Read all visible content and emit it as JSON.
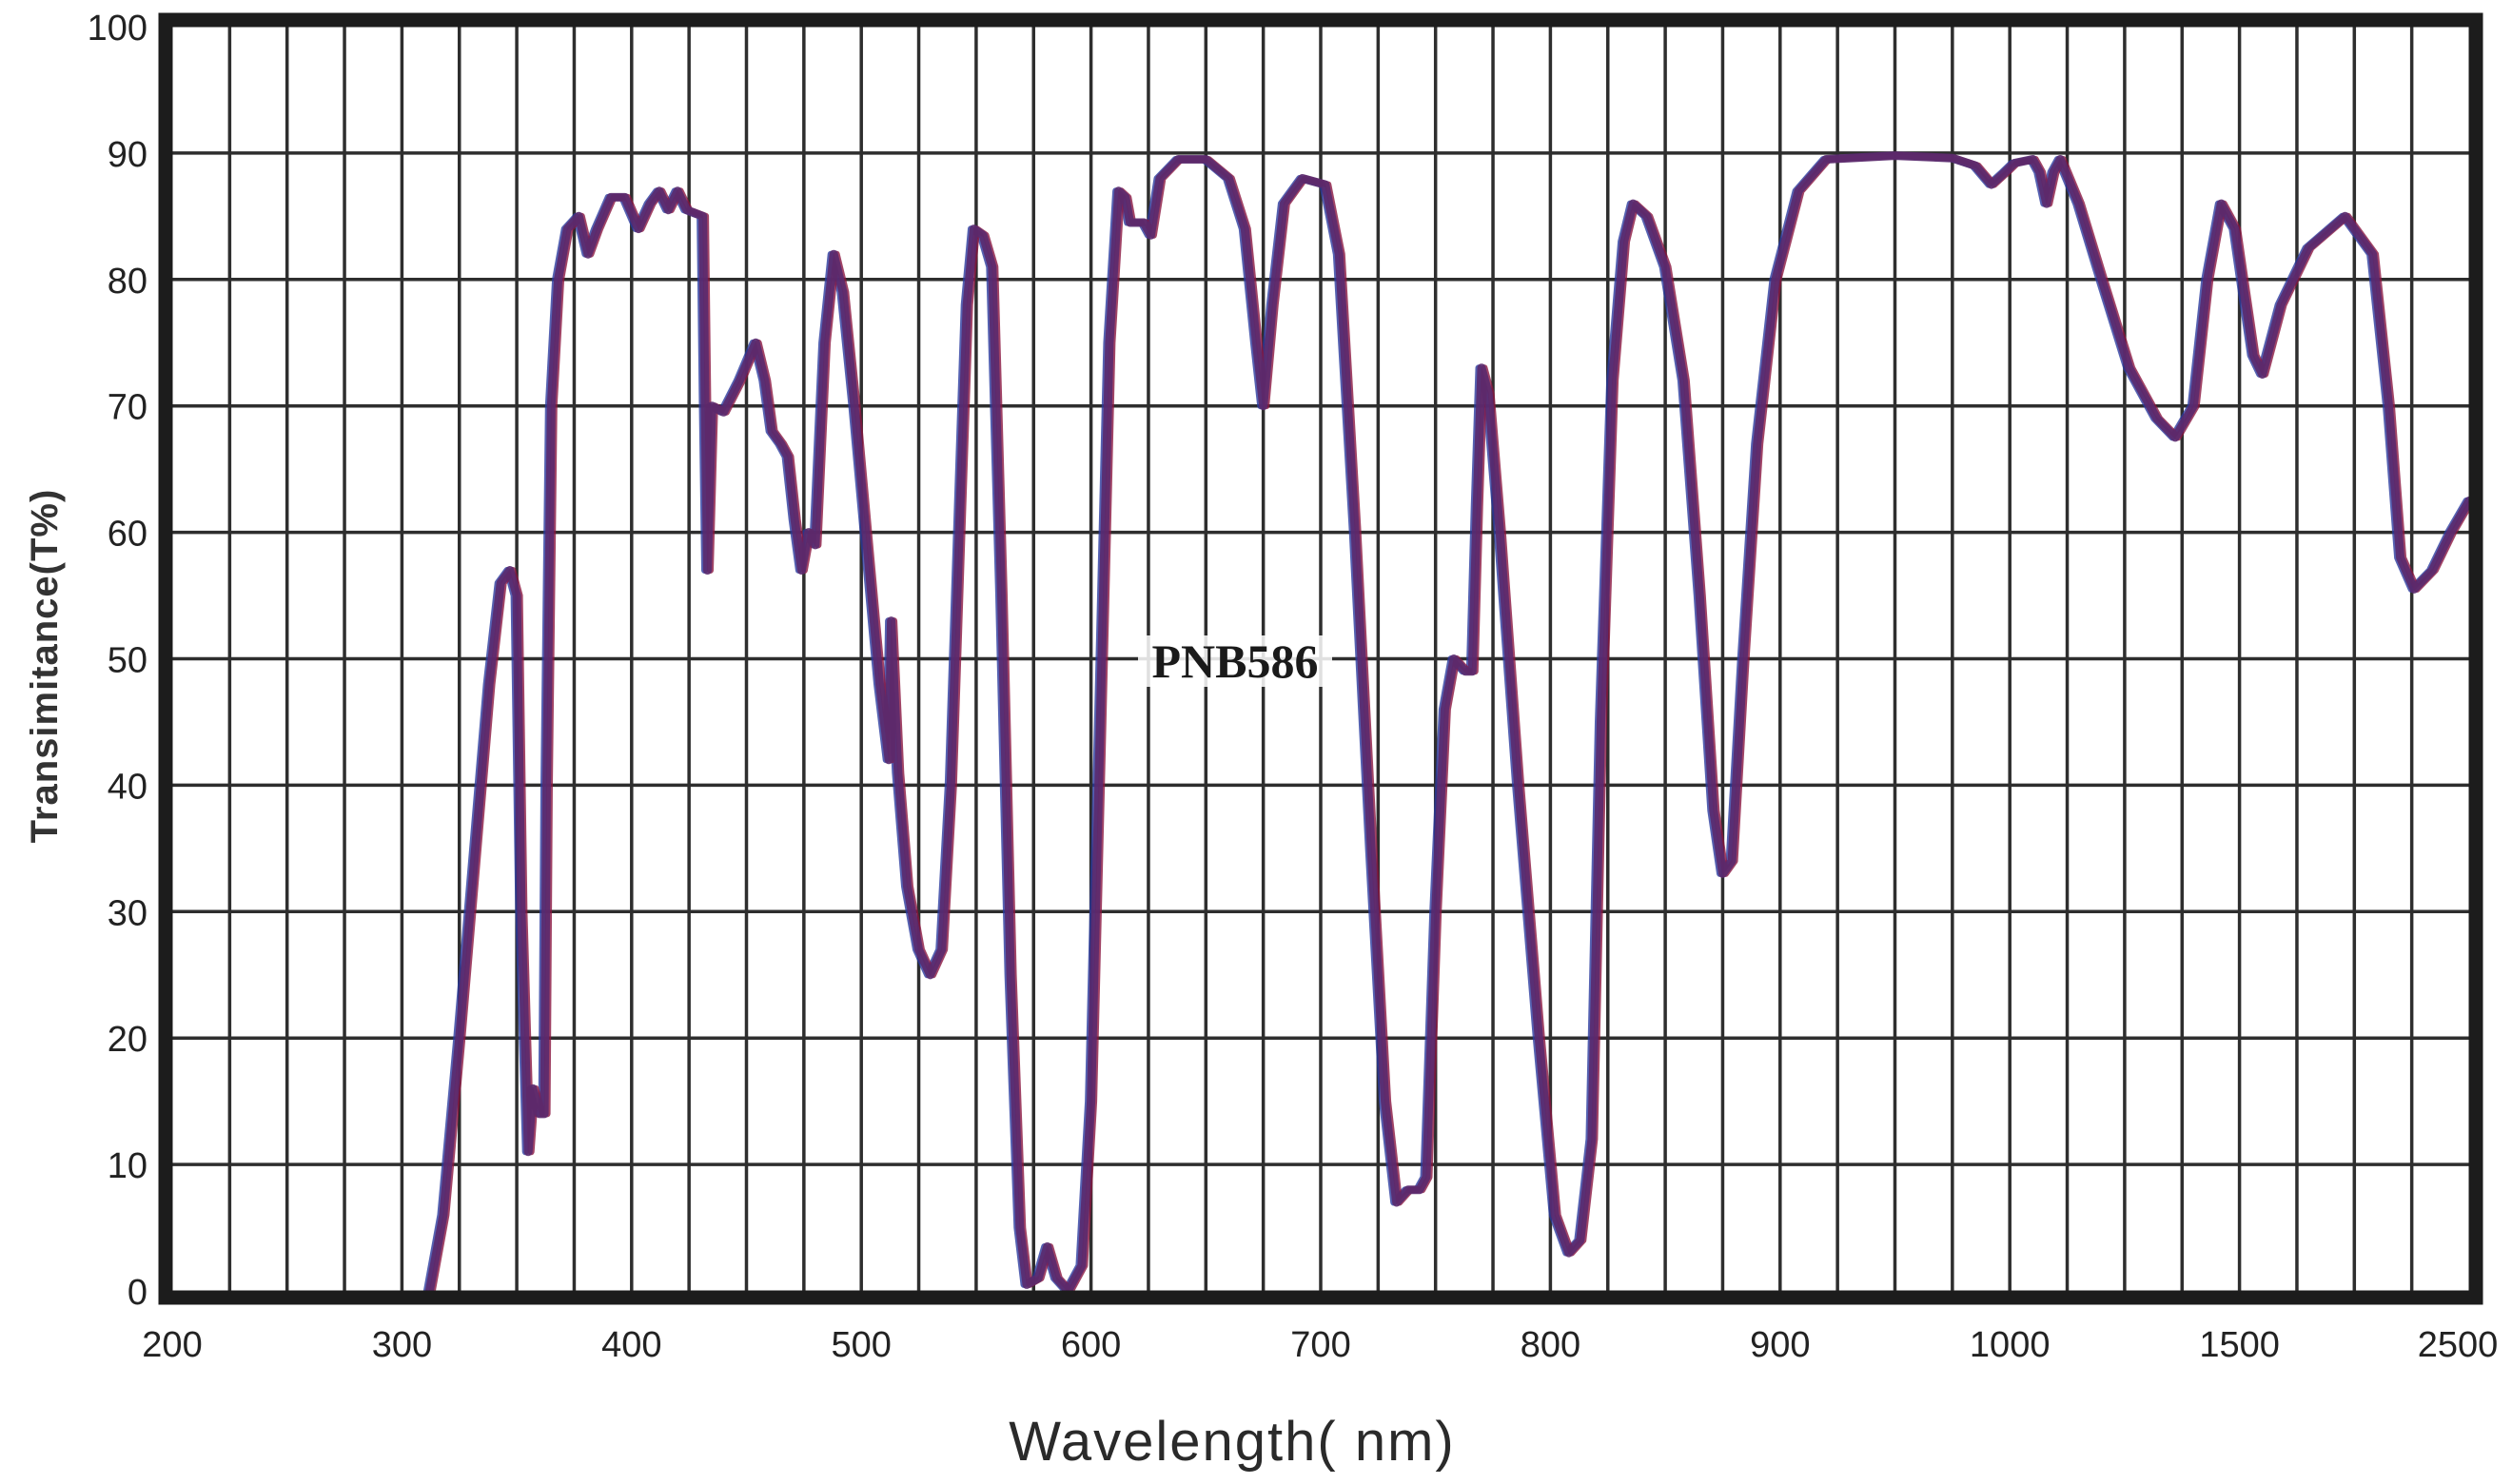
{
  "chart_data": {
    "type": "line",
    "title": "",
    "xlabel": "Wavelength( nm)",
    "ylabel": "Transimitance(T%)",
    "ylim": [
      0,
      100
    ],
    "xlim": [
      200,
      2500
    ],
    "x_scale_note": "non-uniform: linear 200-1000 nm, then compressed 1000-1500-2500",
    "grid": true,
    "legend": null,
    "annotations": [
      {
        "text": "PNB586",
        "x_nm": 665,
        "y": 50
      }
    ],
    "x_ticks": [
      {
        "label": "200",
        "value": 200
      },
      {
        "label": "300",
        "value": 300
      },
      {
        "label": "400",
        "value": 400
      },
      {
        "label": "500",
        "value": 500
      },
      {
        "label": "600",
        "value": 600
      },
      {
        "label": "700",
        "value": 700
      },
      {
        "label": "800",
        "value": 800
      },
      {
        "label": "900",
        "value": 900
      },
      {
        "label": "1000",
        "value": 1000
      },
      {
        "label": "1500",
        "value": 1500
      },
      {
        "label": "2500",
        "value": 2500
      }
    ],
    "y_ticks": [
      "0",
      "10",
      "20",
      "30",
      "40",
      "50",
      "60",
      "70",
      "80",
      "90",
      "100"
    ],
    "series": [
      {
        "name": "PNB586",
        "color": "#5a2a6e",
        "points": [
          [
            312,
            0
          ],
          [
            318,
            6
          ],
          [
            325,
            20
          ],
          [
            332,
            35
          ],
          [
            338,
            48
          ],
          [
            343,
            56
          ],
          [
            347,
            57
          ],
          [
            350,
            55
          ],
          [
            352,
            30
          ],
          [
            355,
            11
          ],
          [
            357,
            16
          ],
          [
            360,
            14
          ],
          [
            362,
            14
          ],
          [
            363,
            40
          ],
          [
            365,
            70
          ],
          [
            368,
            80
          ],
          [
            372,
            84
          ],
          [
            377,
            85
          ],
          [
            381,
            82
          ],
          [
            385,
            84
          ],
          [
            391,
            86.5
          ],
          [
            397,
            86.5
          ],
          [
            403,
            84
          ],
          [
            408,
            86
          ],
          [
            412,
            87
          ],
          [
            416,
            85.5
          ],
          [
            420,
            87
          ],
          [
            424,
            85.5
          ],
          [
            431,
            85
          ],
          [
            432,
            70
          ],
          [
            433,
            57
          ],
          [
            435,
            70
          ],
          [
            440,
            69.5
          ],
          [
            447,
            72
          ],
          [
            454,
            75
          ],
          [
            458,
            72
          ],
          [
            461,
            68
          ],
          [
            465,
            67
          ],
          [
            468,
            66
          ],
          [
            471,
            61
          ],
          [
            474,
            57
          ],
          [
            477,
            60
          ],
          [
            480,
            59
          ],
          [
            484,
            75
          ],
          [
            488,
            82
          ],
          [
            492,
            79
          ],
          [
            497,
            70
          ],
          [
            503,
            58
          ],
          [
            508,
            48
          ],
          [
            512,
            42
          ],
          [
            513,
            53
          ],
          [
            516,
            41
          ],
          [
            520,
            32
          ],
          [
            525,
            27
          ],
          [
            530,
            25
          ],
          [
            535,
            27
          ],
          [
            539,
            40
          ],
          [
            543,
            62
          ],
          [
            546,
            78
          ],
          [
            549,
            84
          ],
          [
            553,
            83.5
          ],
          [
            557,
            81
          ],
          [
            561,
            55
          ],
          [
            565,
            25
          ],
          [
            569,
            5
          ],
          [
            572,
            0.5
          ],
          [
            577,
            1
          ],
          [
            581,
            3.5
          ],
          [
            585,
            1
          ],
          [
            590,
            0
          ],
          [
            596,
            2
          ],
          [
            600,
            15
          ],
          [
            604,
            45
          ],
          [
            608,
            75
          ],
          [
            612,
            87
          ],
          [
            615,
            86.5
          ],
          [
            617,
            84.5
          ],
          [
            623,
            84.5
          ],
          [
            626,
            83.5
          ],
          [
            630,
            88
          ],
          [
            638,
            89.5
          ],
          [
            650,
            89.5
          ],
          [
            660,
            88
          ],
          [
            667,
            84
          ],
          [
            672,
            75
          ],
          [
            675,
            70
          ],
          [
            679,
            78
          ],
          [
            684,
            86
          ],
          [
            692,
            88
          ],
          [
            702,
            87.5
          ],
          [
            708,
            82
          ],
          [
            715,
            60
          ],
          [
            722,
            35
          ],
          [
            728,
            15
          ],
          [
            733,
            7
          ],
          [
            738,
            8
          ],
          [
            743,
            8
          ],
          [
            746,
            9
          ],
          [
            750,
            30
          ],
          [
            754,
            46
          ],
          [
            758,
            50
          ],
          [
            763,
            49
          ],
          [
            766,
            49
          ],
          [
            768,
            62
          ],
          [
            770,
            73
          ],
          [
            773,
            71
          ],
          [
            778,
            60
          ],
          [
            786,
            40
          ],
          [
            795,
            20
          ],
          [
            802,
            6
          ],
          [
            808,
            3
          ],
          [
            813,
            4
          ],
          [
            818,
            12
          ],
          [
            822,
            45
          ],
          [
            827,
            72
          ],
          [
            832,
            83
          ],
          [
            836,
            86
          ],
          [
            842,
            85
          ],
          [
            850,
            81
          ],
          [
            858,
            72
          ],
          [
            865,
            55
          ],
          [
            871,
            38
          ],
          [
            875,
            33
          ],
          [
            879,
            34
          ],
          [
            884,
            50
          ],
          [
            890,
            67
          ],
          [
            898,
            80
          ],
          [
            908,
            87
          ],
          [
            920,
            89.5
          ],
          [
            950,
            89.8
          ],
          [
            975,
            89.6
          ],
          [
            985,
            89
          ],
          [
            992,
            87.5
          ],
          [
            998,
            88.5
          ],
          [
            1010,
            89.2
          ],
          [
            1050,
            89.5
          ],
          [
            1065,
            88.5
          ],
          [
            1080,
            86
          ],
          [
            1095,
            88.5
          ],
          [
            1110,
            89.5
          ],
          [
            1150,
            86
          ],
          [
            1200,
            80
          ],
          [
            1260,
            73
          ],
          [
            1320,
            69
          ],
          [
            1360,
            67.5
          ],
          [
            1400,
            70
          ],
          [
            1430,
            80
          ],
          [
            1460,
            86
          ],
          [
            1490,
            84
          ],
          [
            1520,
            79
          ],
          [
            1560,
            74
          ],
          [
            1600,
            72.5
          ],
          [
            1680,
            78
          ],
          [
            1800,
            82.5
          ],
          [
            1960,
            85
          ],
          [
            2080,
            82
          ],
          [
            2150,
            70
          ],
          [
            2200,
            58
          ],
          [
            2260,
            55.5
          ],
          [
            2340,
            57
          ],
          [
            2420,
            60
          ],
          [
            2500,
            62.5
          ]
        ]
      }
    ]
  },
  "axes": {
    "x_title": "Wavelength( nm)",
    "y_title": "Transimitance(T%)",
    "series_label": "PNB586"
  }
}
